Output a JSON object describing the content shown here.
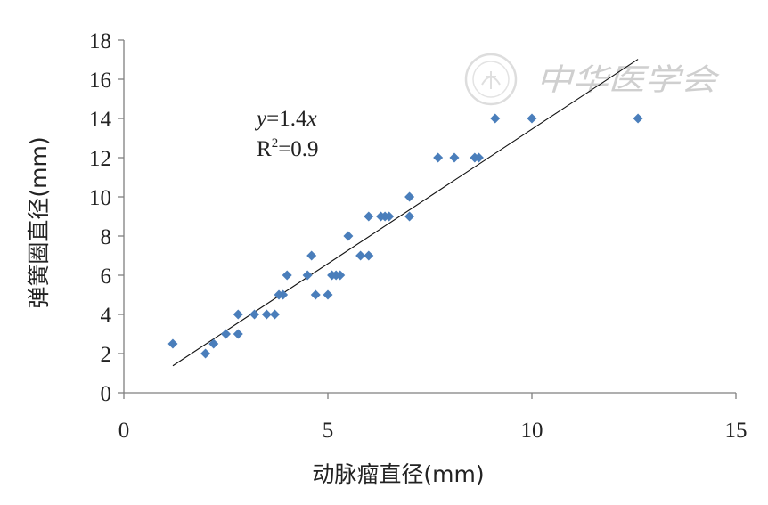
{
  "chart_data": {
    "type": "scatter",
    "xlabel": "动脉瘤直径(mm)",
    "ylabel": "弹簧圈直径(mm)",
    "xlim": [
      0,
      15
    ],
    "ylim": [
      0,
      18
    ],
    "x_ticks": [
      0,
      5,
      10,
      15
    ],
    "y_ticks": [
      0,
      2,
      4,
      6,
      8,
      10,
      12,
      14,
      16,
      18
    ],
    "grid": false,
    "marker_color": "#4a7ebb",
    "trendline": {
      "type": "linear",
      "equation_var_y": "y",
      "equation_mid": "=1.4",
      "equation_var_x": "x",
      "r2_prefix": "R",
      "r2_sup": "2",
      "r2_value": "=0.9",
      "x_range": [
        1.2,
        12.6
      ]
    },
    "points": [
      {
        "x": 1.2,
        "y": 2.5
      },
      {
        "x": 2.0,
        "y": 2.0
      },
      {
        "x": 2.2,
        "y": 2.5
      },
      {
        "x": 2.5,
        "y": 3.0
      },
      {
        "x": 2.8,
        "y": 3.0
      },
      {
        "x": 2.8,
        "y": 4.0
      },
      {
        "x": 3.2,
        "y": 4.0
      },
      {
        "x": 3.5,
        "y": 4.0
      },
      {
        "x": 3.7,
        "y": 4.0
      },
      {
        "x": 3.8,
        "y": 5.0
      },
      {
        "x": 3.9,
        "y": 5.0
      },
      {
        "x": 4.0,
        "y": 6.0
      },
      {
        "x": 4.5,
        "y": 6.0
      },
      {
        "x": 4.6,
        "y": 7.0
      },
      {
        "x": 4.7,
        "y": 5.0
      },
      {
        "x": 5.0,
        "y": 5.0
      },
      {
        "x": 5.1,
        "y": 6.0
      },
      {
        "x": 5.2,
        "y": 6.0
      },
      {
        "x": 5.3,
        "y": 6.0
      },
      {
        "x": 5.5,
        "y": 8.0
      },
      {
        "x": 5.8,
        "y": 7.0
      },
      {
        "x": 6.0,
        "y": 7.0
      },
      {
        "x": 6.0,
        "y": 9.0
      },
      {
        "x": 6.3,
        "y": 9.0
      },
      {
        "x": 6.4,
        "y": 9.0
      },
      {
        "x": 6.5,
        "y": 9.0
      },
      {
        "x": 7.0,
        "y": 9.0
      },
      {
        "x": 7.0,
        "y": 10.0
      },
      {
        "x": 7.7,
        "y": 12.0
      },
      {
        "x": 8.1,
        "y": 12.0
      },
      {
        "x": 8.6,
        "y": 12.0
      },
      {
        "x": 8.7,
        "y": 12.0
      },
      {
        "x": 9.1,
        "y": 14.0
      },
      {
        "x": 10.0,
        "y": 14.0
      },
      {
        "x": 12.6,
        "y": 14.0
      }
    ]
  },
  "watermark": {
    "text": "中华医学会",
    "icon": "society-seal-icon"
  }
}
